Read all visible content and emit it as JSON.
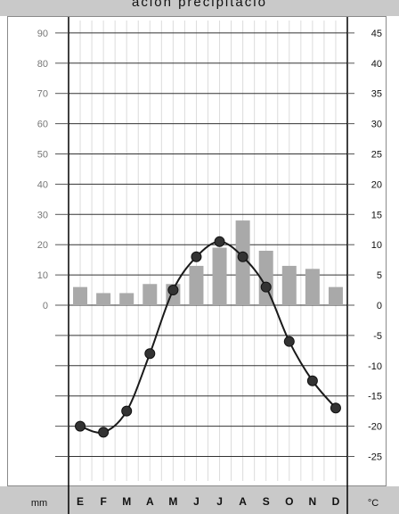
{
  "header": {
    "text": "ación     precipitació"
  },
  "chart_data": {
    "type": "bar",
    "categories": [
      "E",
      "F",
      "M",
      "A",
      "M",
      "J",
      "J",
      "A",
      "S",
      "O",
      "N",
      "D"
    ],
    "series": [
      {
        "name": "",
        "kind": "bar",
        "axis": "left",
        "values": [
          6,
          4,
          4,
          7,
          7,
          13,
          19,
          28,
          18,
          13,
          12,
          6
        ]
      },
      {
        "name": "",
        "kind": "line",
        "axis": "right",
        "values": [
          -20,
          -21,
          -17.5,
          -8,
          2.5,
          8,
          10.5,
          8,
          3,
          -6,
          -12.5,
          -17
        ]
      }
    ],
    "left_axis": {
      "unit": "mm",
      "range": [
        -50,
        100
      ],
      "tick_labels": [
        "90",
        "80",
        "70",
        "60",
        "50",
        "40",
        "30",
        "20",
        "10",
        "0"
      ]
    },
    "right_axis": {
      "unit": "°C",
      "range": [
        -25,
        50
      ],
      "tick_labels": [
        "45",
        "40",
        "35",
        "30",
        "25",
        "20",
        "15",
        "10",
        "5",
        "0",
        "-5",
        "-10",
        "-15",
        "-20",
        "-25"
      ]
    },
    "grid": true,
    "colors": {
      "bar": "#a9a9a9",
      "line": "#1a1a1a",
      "point": "#333333",
      "band": "#c9c9c9",
      "grid": "#333333"
    }
  }
}
